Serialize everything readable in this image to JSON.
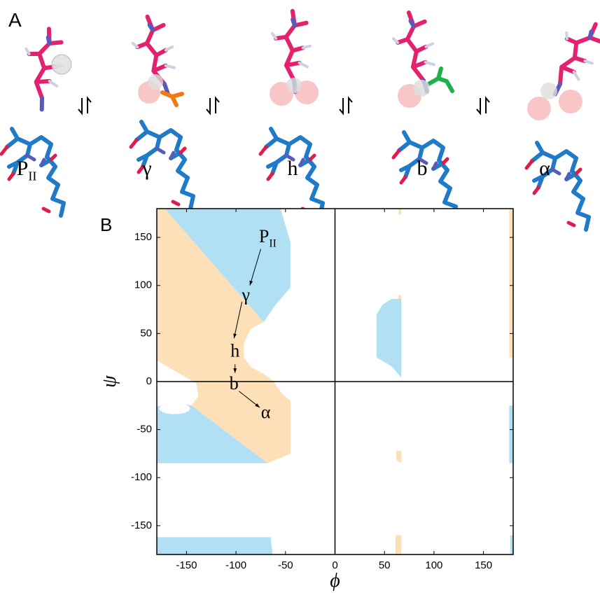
{
  "panel_a": {
    "panel_label": "A",
    "states": [
      {
        "symbol": "P",
        "subscript": "II"
      },
      {
        "symbol": "γ"
      },
      {
        "symbol": "h"
      },
      {
        "symbol": "b"
      },
      {
        "symbol": "α"
      }
    ]
  },
  "chart_data": {
    "type": "region",
    "panel_label": "B",
    "xlabel": "ϕ",
    "ylabel": "ψ",
    "xlim": [
      -180,
      180
    ],
    "ylim": [
      -180,
      180
    ],
    "xticks": [
      -150,
      -100,
      -50,
      0,
      50,
      100,
      150
    ],
    "yticks": [
      -150,
      -100,
      -50,
      0,
      50,
      100,
      150
    ],
    "colors": {
      "orange": "#fddfb8",
      "blue": "#b1e0f5"
    },
    "annotations": [
      {
        "symbol": "P",
        "subscript": "II"
      },
      {
        "symbol": "γ"
      },
      {
        "symbol": "h"
      },
      {
        "symbol": "b"
      },
      {
        "symbol": "α"
      }
    ]
  }
}
